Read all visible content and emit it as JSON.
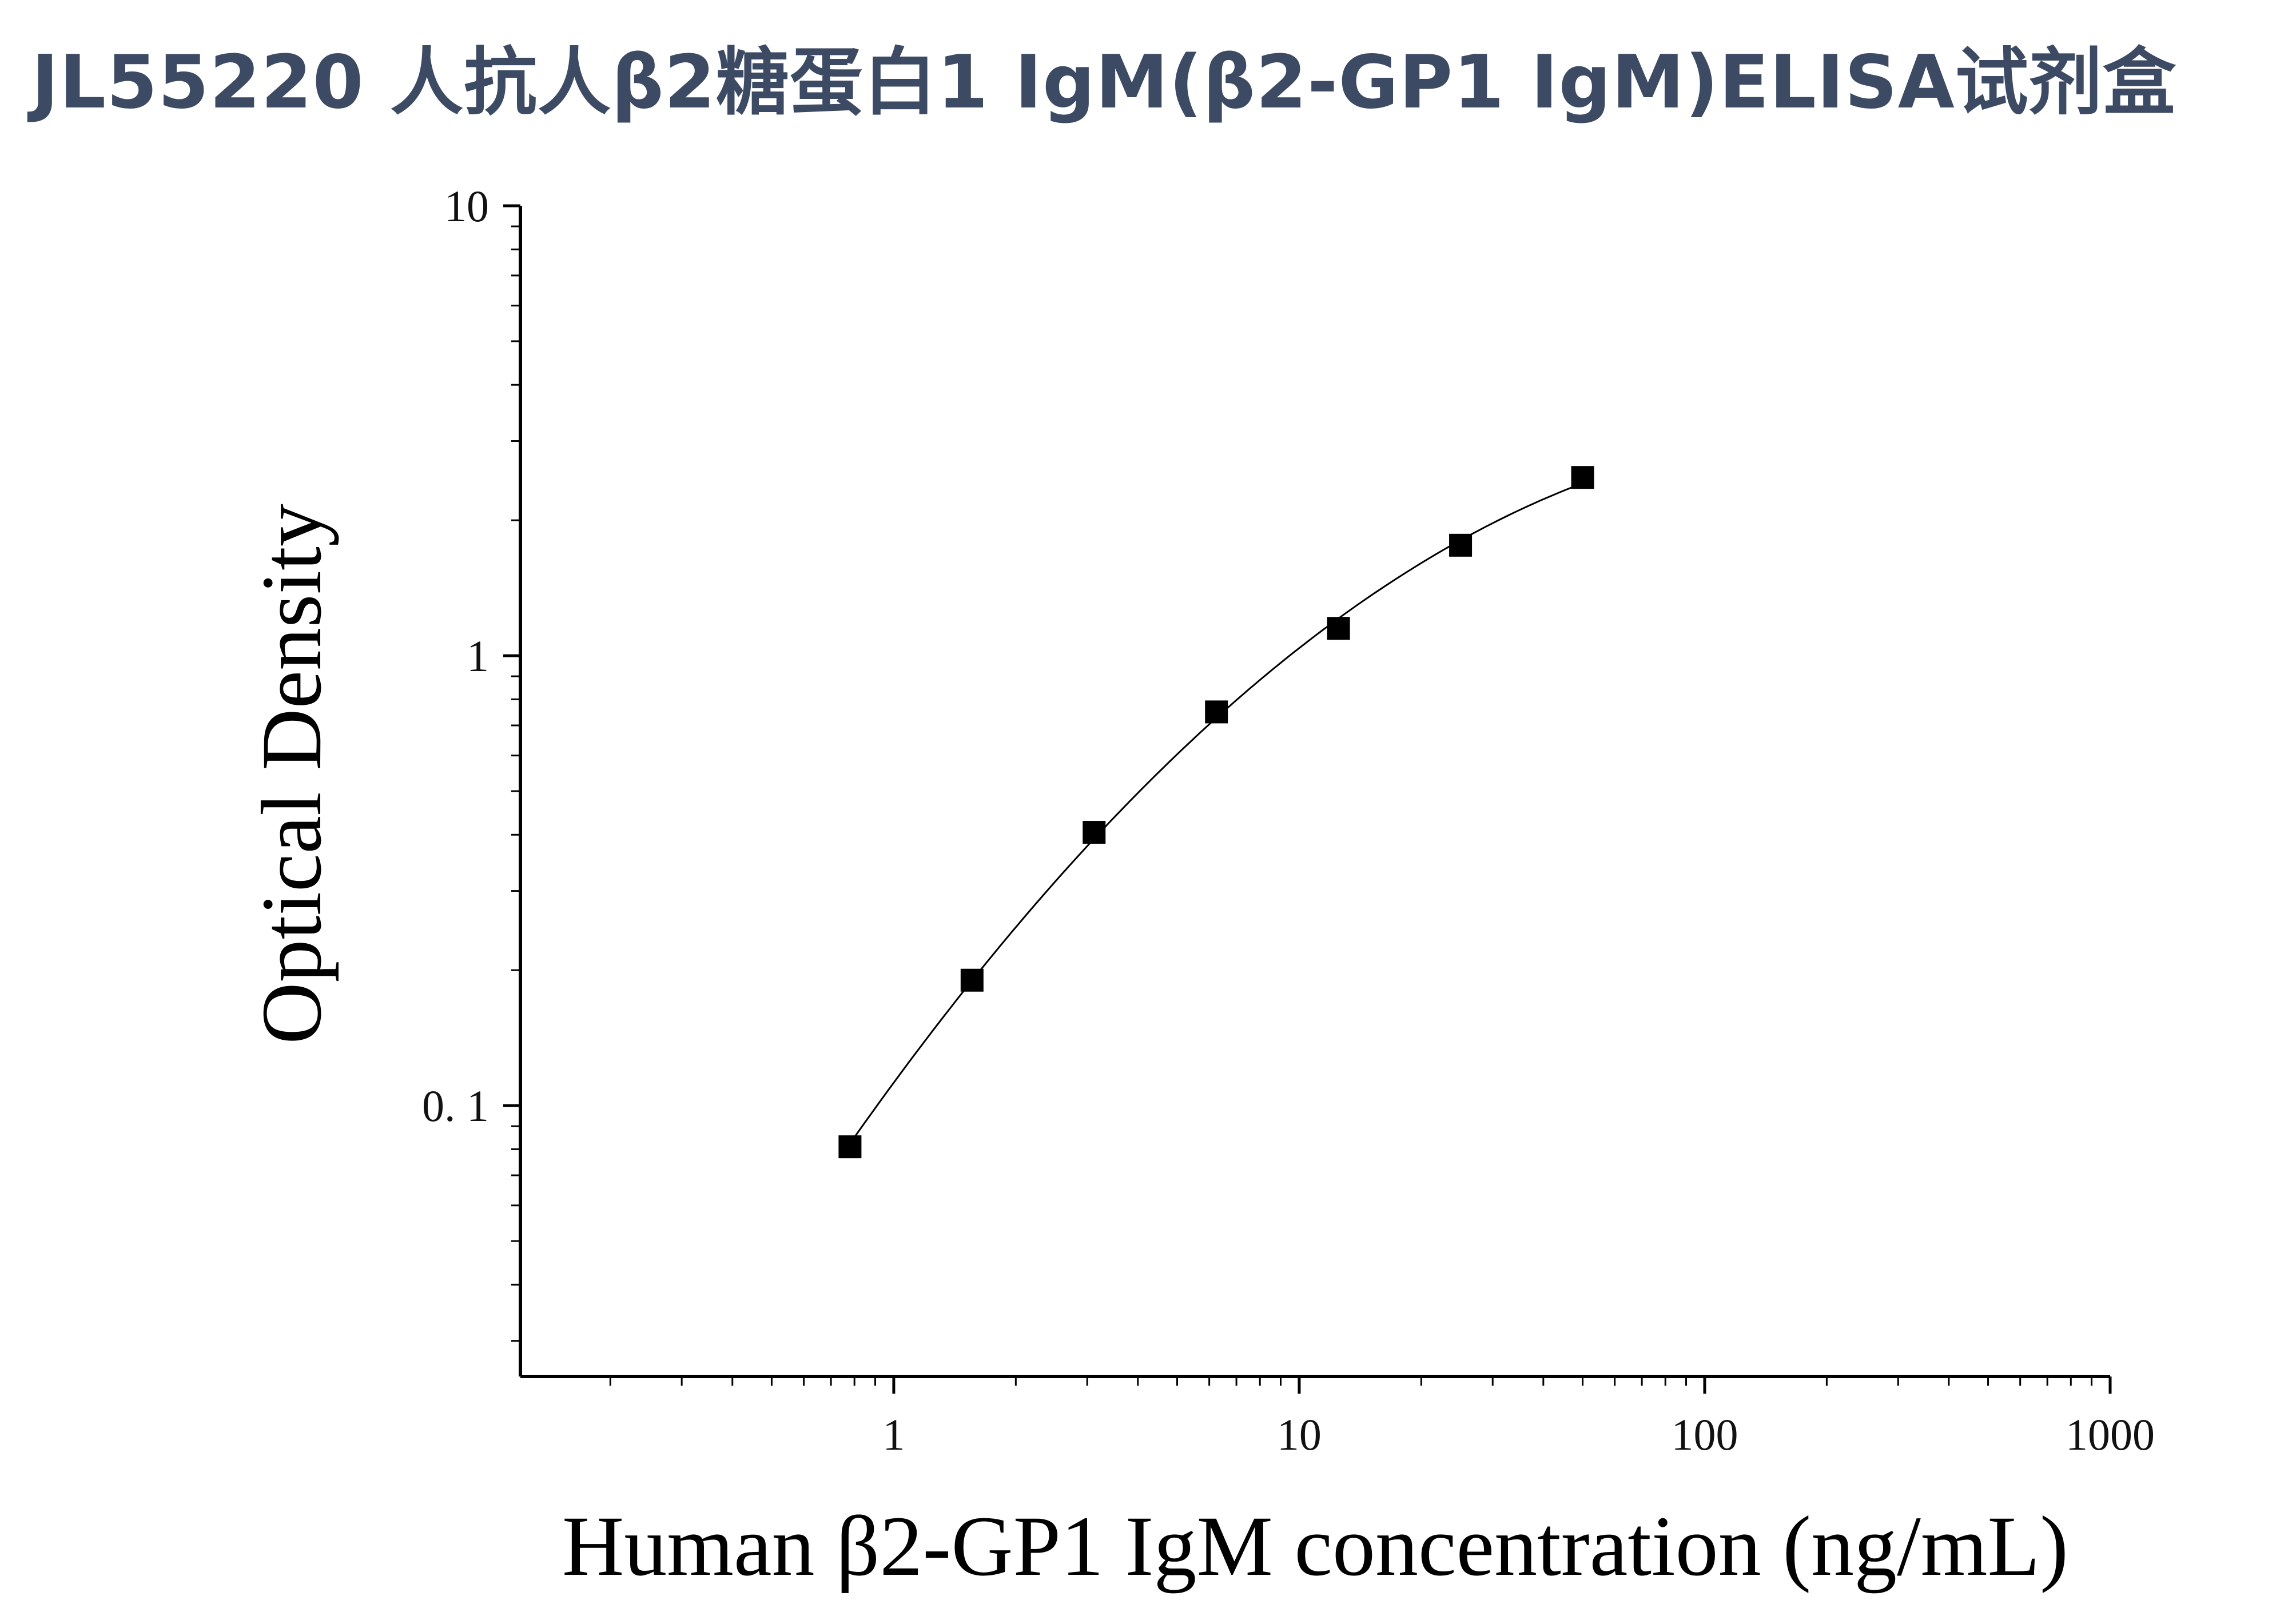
{
  "title": "JL55220 人抗人β2糖蛋白1 IgM(β2-GP1 IgM)ELISA试剂盒",
  "chart_data": {
    "type": "scatter",
    "xlabel": "Human β2-GP1 IgM concentration (ng/mL)",
    "ylabel": "Optical Density",
    "x_scale": "log",
    "y_scale": "log",
    "xlim": [
      0.12,
      1000
    ],
    "ylim": [
      0.025,
      10
    ],
    "x_ticks": [
      1,
      10,
      100,
      1000
    ],
    "x_tick_labels": [
      "1",
      "10",
      "100",
      "1000"
    ],
    "y_ticks": [
      0.1,
      1,
      10
    ],
    "y_tick_labels": [
      "0. 1",
      "1",
      "10"
    ],
    "grid": false,
    "series": [
      {
        "marker": "square",
        "fit_line": true,
        "color": "#000000",
        "x": [
          0.78,
          1.56,
          3.12,
          6.25,
          12.5,
          25,
          50
        ],
        "y": [
          0.081,
          0.19,
          0.405,
          0.75,
          1.15,
          1.76,
          2.49
        ]
      }
    ]
  }
}
